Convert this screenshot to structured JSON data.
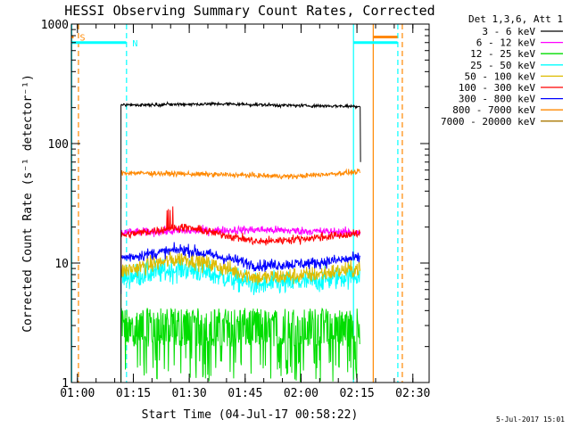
{
  "chart_data": {
    "type": "line",
    "title": "HESSI Observing Summary Count Rates, Corrected",
    "xlabel": "Start Time (04-Jul-17 00:58:22)",
    "ylabel": "Corrected Count Rate (s⁻¹ detector⁻¹)",
    "yscale": "log",
    "ylim": [
      1,
      1000
    ],
    "xlim_minutes": [
      0,
      96
    ],
    "x_ticks": [
      {
        "label": "01:00",
        "min": 1.63
      },
      {
        "label": "01:15",
        "min": 16.63
      },
      {
        "label": "01:30",
        "min": 31.63
      },
      {
        "label": "01:45",
        "min": 46.63
      },
      {
        "label": "02:00",
        "min": 61.63
      },
      {
        "label": "02:15",
        "min": 76.63
      },
      {
        "label": "02:30",
        "min": 91.63
      }
    ],
    "y_ticks": [
      {
        "label": "1",
        "v": 1
      },
      {
        "label": "10",
        "v": 10
      },
      {
        "label": "100",
        "v": 100
      },
      {
        "label": "1000",
        "v": 1000
      }
    ],
    "legend_header": "Det 1,3,6, Att 1",
    "legend_position": "right",
    "data_start_min": 13.3,
    "data_end_min": 77.6,
    "series": [
      {
        "name": "3 - 6 keV",
        "color": "#000000",
        "level": [
          [
            13.3,
            210
          ],
          [
            40,
            215
          ],
          [
            60,
            208
          ],
          [
            77,
            205
          ]
        ],
        "noise": 0.02,
        "end_drop": 70
      },
      {
        "name": "6 - 12 keV",
        "color": "#ff00ff",
        "level": [
          [
            13.3,
            18
          ],
          [
            30,
            18.5
          ],
          [
            50,
            19
          ],
          [
            77,
            18
          ]
        ],
        "noise": 0.05
      },
      {
        "name": "12 - 25 keV",
        "color": "#00dd00",
        "level": [
          [
            13.3,
            3
          ],
          [
            77,
            3
          ]
        ],
        "noise": 0.45
      },
      {
        "name": "25 - 50 keV",
        "color": "#00ffff",
        "level": [
          [
            13.3,
            7.5
          ],
          [
            30,
            9
          ],
          [
            50,
            6.5
          ],
          [
            65,
            7
          ],
          [
            77,
            8
          ]
        ],
        "noise": 0.14
      },
      {
        "name": "50 - 100 keV",
        "color": "#ddbb00",
        "level": [
          [
            13.3,
            8.5
          ],
          [
            30,
            11
          ],
          [
            50,
            7.5
          ],
          [
            65,
            8
          ],
          [
            77,
            9
          ]
        ],
        "noise": 0.1
      },
      {
        "name": "100 - 300 keV",
        "color": "#ff0000",
        "level": [
          [
            13.3,
            17
          ],
          [
            30,
            20
          ],
          [
            50,
            15
          ],
          [
            62,
            16
          ],
          [
            77,
            17.5
          ]
        ],
        "noise": 0.05
      },
      {
        "name": "300 - 800 keV",
        "color": "#0000ff",
        "level": [
          [
            13.3,
            11
          ],
          [
            30,
            13
          ],
          [
            50,
            9.5
          ],
          [
            65,
            10
          ],
          [
            77,
            11
          ]
        ],
        "noise": 0.07
      },
      {
        "name": "800 - 7000 keV",
        "color": "#ff8800",
        "level": [
          [
            13.3,
            57
          ],
          [
            40,
            55
          ],
          [
            60,
            53
          ],
          [
            77,
            58
          ]
        ],
        "noise": 0.03
      },
      {
        "name": "7000 - 20000 keV",
        "color": "#aa7700",
        "level": [],
        "noise": 0
      }
    ],
    "flag_bars": [
      {
        "label": "S",
        "color": "#ff8800",
        "segments": [
          [
            0,
            0.6
          ],
          [
            80.9,
            87.5
          ]
        ],
        "value": 780
      },
      {
        "label": "N",
        "color": "#00ffff",
        "segments": [
          [
            0,
            14.7
          ],
          [
            75.7,
            87.5
          ]
        ],
        "value": 700
      }
    ],
    "vertical_markers": [
      {
        "min": 0.1,
        "color": "#00ffff",
        "style": "solid"
      },
      {
        "min": 1.9,
        "color": "#ff8800",
        "style": "dashed"
      },
      {
        "min": 14.8,
        "color": "#00ffff",
        "style": "dashed"
      },
      {
        "min": 75.7,
        "color": "#00ffff",
        "style": "solid"
      },
      {
        "min": 81,
        "color": "#ff8800",
        "style": "solid"
      },
      {
        "min": 87.6,
        "color": "#00ffff",
        "style": "dashed"
      },
      {
        "min": 88.8,
        "color": "#ff8800",
        "style": "dashed"
      }
    ],
    "timestamp": "5-Jul-2017 15:01"
  }
}
